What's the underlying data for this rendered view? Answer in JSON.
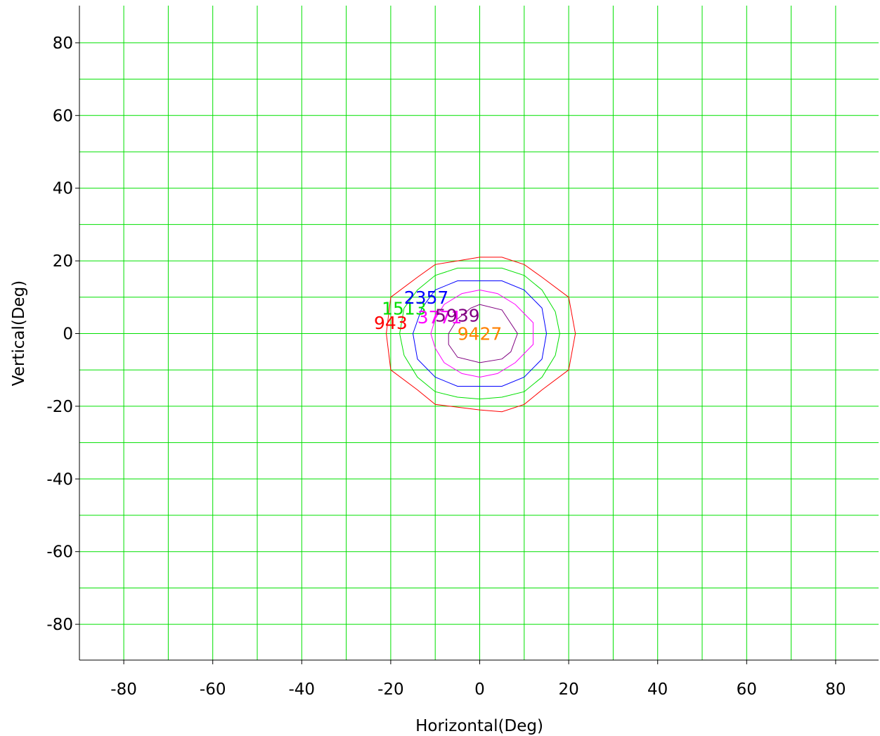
{
  "chart_data": {
    "type": "contour",
    "title": "",
    "xlabel": "Horizontal(Deg)",
    "ylabel": "Vertical(Deg)",
    "xlim": [
      -90,
      90
    ],
    "ylim": [
      -90,
      90
    ],
    "grid": true,
    "grid_color": "#00e000",
    "x_ticks": [
      -80,
      -60,
      -40,
      -20,
      0,
      20,
      40,
      60,
      80
    ],
    "y_ticks": [
      80,
      60,
      40,
      20,
      0,
      -20,
      -40,
      -60,
      -80
    ],
    "x_tick_labels": [
      "-80",
      "-60",
      "-40",
      "-20",
      "0",
      "20",
      "40",
      "60",
      "80"
    ],
    "y_tick_labels": [
      "80",
      "60",
      "40",
      "20",
      "0",
      "-20",
      "-40",
      "-60",
      "-80"
    ],
    "contours": [
      {
        "level": "943",
        "color": "#ff0000",
        "label_at": [
          -20,
          3
        ],
        "points": [
          [
            -20,
            10
          ],
          [
            -14,
            15.5
          ],
          [
            -10,
            19
          ],
          [
            0,
            21
          ],
          [
            5,
            21
          ],
          [
            10,
            19
          ],
          [
            14,
            15.5
          ],
          [
            20,
            10
          ],
          [
            21.5,
            0
          ],
          [
            20,
            -10
          ],
          [
            14,
            -15.5
          ],
          [
            10,
            -19.5
          ],
          [
            5,
            -21.5
          ],
          [
            0,
            -21
          ],
          [
            -10,
            -19.5
          ],
          [
            -14,
            -15.5
          ],
          [
            -20,
            -10
          ],
          [
            -21,
            0
          ]
        ]
      },
      {
        "level": "1513",
        "color": "#00e000",
        "label_at": [
          -17,
          7
        ],
        "points": [
          [
            -17,
            7
          ],
          [
            -14,
            12
          ],
          [
            -10,
            16
          ],
          [
            -5,
            18
          ],
          [
            0,
            18
          ],
          [
            5,
            18
          ],
          [
            10,
            16
          ],
          [
            14,
            12
          ],
          [
            17,
            6
          ],
          [
            18,
            0
          ],
          [
            17,
            -6
          ],
          [
            14,
            -12
          ],
          [
            10,
            -16
          ],
          [
            5,
            -17.5
          ],
          [
            0,
            -18
          ],
          [
            -5,
            -17.5
          ],
          [
            -10,
            -16
          ],
          [
            -14,
            -12
          ],
          [
            -17,
            -6
          ],
          [
            -18,
            0
          ]
        ]
      },
      {
        "level": "2357",
        "color": "#0000ff",
        "label_at": [
          -12,
          10
        ],
        "points": [
          [
            -13,
            7
          ],
          [
            -10,
            12
          ],
          [
            -5,
            14.5
          ],
          [
            0,
            14.5
          ],
          [
            5,
            14.5
          ],
          [
            10,
            12
          ],
          [
            14,
            7
          ],
          [
            15,
            0
          ],
          [
            14,
            -7
          ],
          [
            10,
            -12
          ],
          [
            5,
            -14.5
          ],
          [
            0,
            -14.5
          ],
          [
            -5,
            -14.5
          ],
          [
            -10,
            -12
          ],
          [
            -14,
            -7
          ],
          [
            -15,
            0
          ]
        ]
      },
      {
        "level": "3771",
        "color": "#ff00ff",
        "label_at": [
          -9,
          4.5
        ],
        "points": [
          [
            -10,
            4
          ],
          [
            -8,
            8
          ],
          [
            -4,
            11
          ],
          [
            0,
            12
          ],
          [
            4,
            11
          ],
          [
            8,
            8
          ],
          [
            12,
            3
          ],
          [
            12,
            -3
          ],
          [
            8,
            -8
          ],
          [
            4,
            -11
          ],
          [
            0,
            -12
          ],
          [
            -4,
            -11
          ],
          [
            -8,
            -8
          ],
          [
            -10,
            -4
          ],
          [
            -11,
            0
          ]
        ]
      },
      {
        "level": "5939",
        "color": "#800080",
        "label_at": [
          -5,
          5
        ],
        "points": [
          [
            -5,
            4
          ],
          [
            -2,
            7
          ],
          [
            0,
            8
          ],
          [
            5,
            6.5
          ],
          [
            8.5,
            0
          ],
          [
            7,
            -5
          ],
          [
            5,
            -7
          ],
          [
            0,
            -8
          ],
          [
            -5,
            -6.5
          ],
          [
            -7,
            -3
          ],
          [
            -7,
            0
          ]
        ]
      },
      {
        "level": "9427",
        "color": "#ff8000",
        "label_at": [
          0,
          0
        ],
        "points": []
      }
    ]
  }
}
